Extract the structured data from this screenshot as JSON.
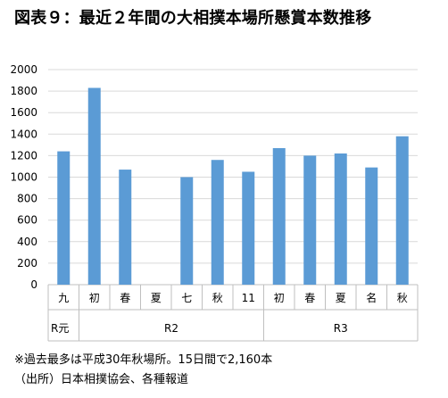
{
  "title": "図表９：最近２年間の大相撲本場所懸賞本数推移",
  "notes": {
    "line1": "※過去最多は平成30年秋場所。15日間で2,160本",
    "line2": "（出所）日本相撲協会、各種報道"
  },
  "colors": {
    "bar": "#5B9BD5",
    "grid": "#d9d9d9",
    "axis": "#bfbfbf"
  },
  "chart_data": {
    "type": "bar",
    "title": "図表９：最近２年間の大相撲本場所懸賞本数推移",
    "xlabel": "",
    "ylabel": "",
    "ylim": [
      0,
      2000
    ],
    "yticks": [
      0,
      200,
      400,
      600,
      800,
      1000,
      1200,
      1400,
      1600,
      1800,
      2000
    ],
    "grid": true,
    "legend": "none",
    "categories": [
      "九",
      "初",
      "春",
      "夏",
      "七",
      "秋",
      "11",
      "初",
      "春",
      "夏",
      "名",
      "秋"
    ],
    "values": [
      1240,
      1830,
      1070,
      null,
      1000,
      1160,
      1050,
      1270,
      1200,
      1220,
      1090,
      1380
    ],
    "groups": [
      {
        "label": "R元",
        "start": 0,
        "end": 0
      },
      {
        "label": "R2",
        "start": 1,
        "end": 6
      },
      {
        "label": "R3",
        "start": 7,
        "end": 11
      }
    ]
  }
}
